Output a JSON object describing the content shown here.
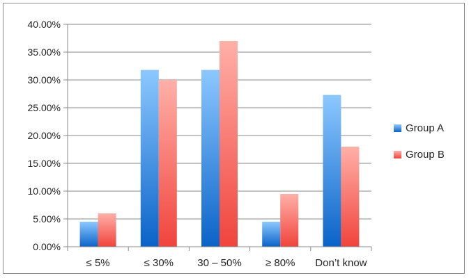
{
  "chart_data": {
    "type": "bar",
    "title": "",
    "xlabel": "",
    "ylabel": "",
    "categories": [
      "≤ 5%",
      "≤ 30%",
      "30 – 50%",
      "≥ 80%",
      "Don’t know"
    ],
    "series": [
      {
        "name": "Group A",
        "values": [
          0.045,
          0.318,
          0.318,
          0.045,
          0.273
        ],
        "color_top": "#8cc8ff",
        "color_bottom": "#0a63c8"
      },
      {
        "name": "Group B",
        "values": [
          0.06,
          0.3,
          0.37,
          0.095,
          0.18
        ],
        "color_top": "#ffb0a8",
        "color_bottom": "#f0443c"
      }
    ],
    "ylim": [
      0,
      0.4
    ],
    "yticks": [
      0,
      0.05,
      0.1,
      0.15,
      0.2,
      0.25,
      0.3,
      0.35,
      0.4
    ],
    "ytick_labels": [
      "0.00%",
      "5.00%",
      "10.00%",
      "15.00%",
      "20.00%",
      "25.00%",
      "30.00%",
      "35.00%",
      "40.00%"
    ],
    "grid": true,
    "legend_position": "right"
  }
}
